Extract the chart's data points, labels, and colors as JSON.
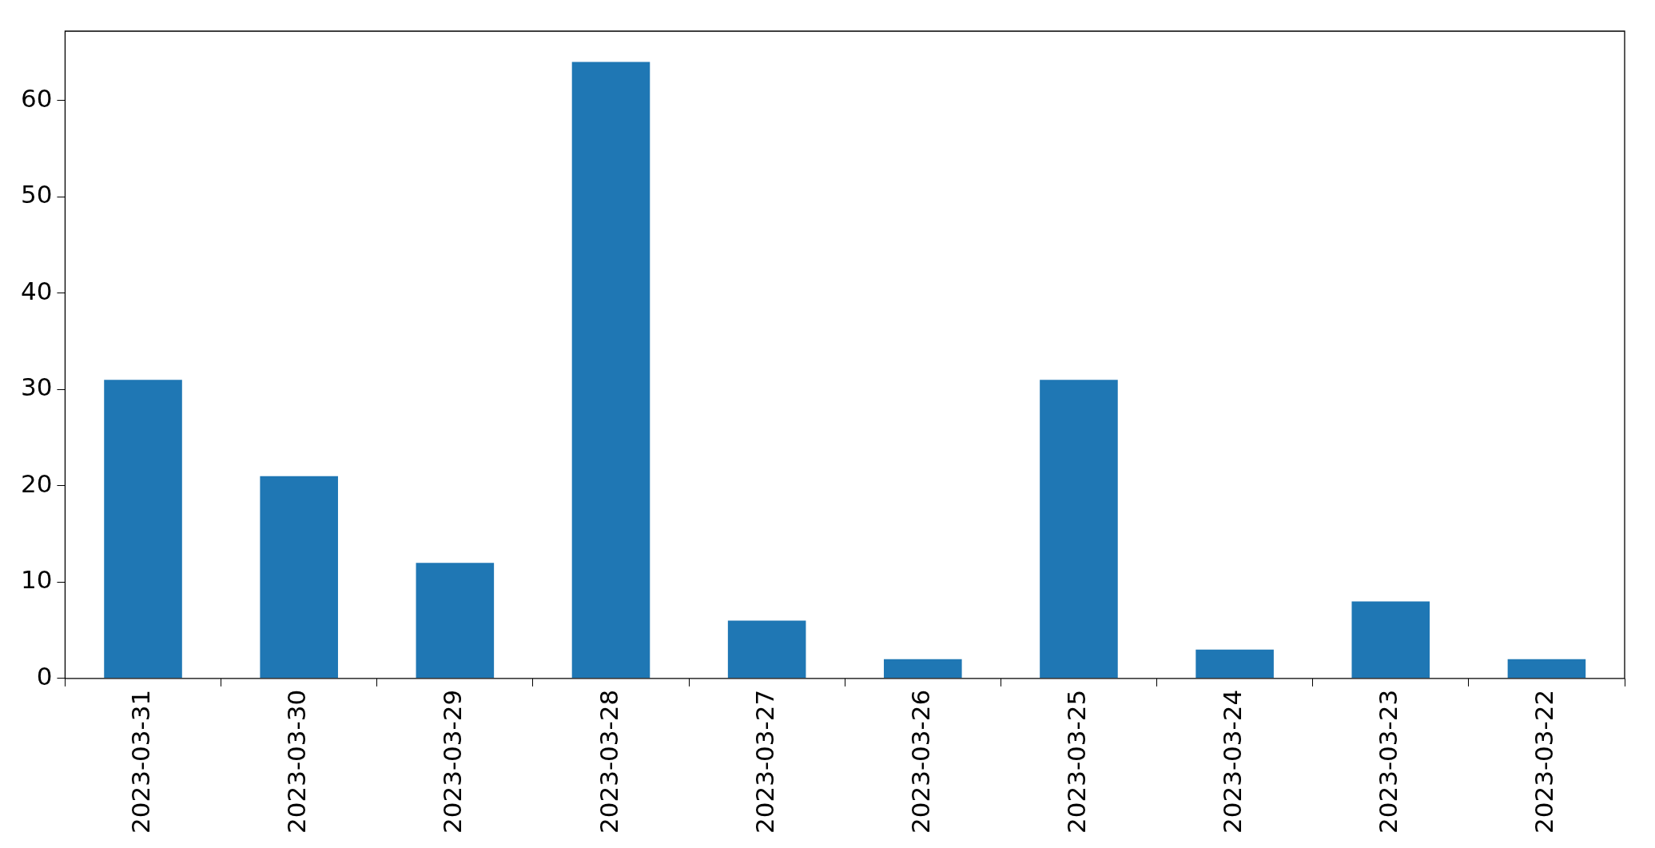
{
  "chart_data": {
    "type": "bar",
    "categories": [
      "2023-03-31",
      "2023-03-30",
      "2023-03-29",
      "2023-03-28",
      "2023-03-27",
      "2023-03-26",
      "2023-03-25",
      "2023-03-24",
      "2023-03-23",
      "2023-03-22"
    ],
    "values": [
      31,
      21,
      12,
      64,
      6,
      2,
      31,
      3,
      8,
      2
    ],
    "color": "#1f77b4",
    "ylim": [
      0,
      67.2
    ],
    "yticks": [
      0,
      10,
      20,
      30,
      40,
      50,
      60
    ]
  }
}
